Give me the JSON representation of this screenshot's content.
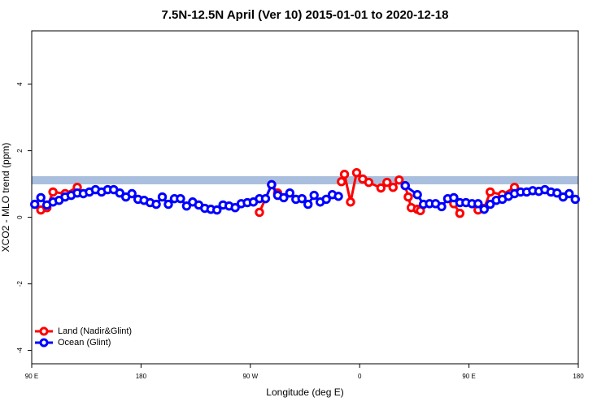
{
  "chart_data": {
    "type": "line",
    "title": "7.5N-12.5N April (Ver 10)   2015-01-01 to 2020-12-18",
    "x_label": "Longitude (deg E)",
    "y_label": "XCO2 - MLO trend (ppm)",
    "xlim": [
      90,
      540
    ],
    "ylim": [
      -4.4,
      5.6
    ],
    "xticks": [
      {
        "value": 90,
        "label": "90 E"
      },
      180,
      {
        "value": 270,
        "label": "90 W"
      },
      {
        "value": 360,
        "label": "0"
      },
      {
        "value": 450,
        "label": "90 E"
      },
      {
        "value": 540,
        "label": "180"
      }
    ],
    "yticks": [
      -4,
      -2,
      0,
      2,
      4
    ],
    "legend": "bottom-left",
    "series": [
      {
        "name": "Land (Nadir&Glint)",
        "color": "#ff0000",
        "x": [
          97.5,
          102.5,
          107.5,
          117.5,
          127.5,
          200,
          277.5,
          287.5,
          292.5,
          320,
          345,
          347.5,
          352.5,
          357.5,
          362.5,
          367.5,
          377.5,
          382.5,
          387.5,
          392.5,
          397.5,
          400,
          402.5,
          407.5,
          410,
          420,
          437.5,
          442.5,
          450,
          457.5,
          462.5,
          467.5,
          477.5,
          487.5
        ],
        "values": [
          0.22,
          0.29,
          0.76,
          0.71,
          0.9,
          null,
          0.15,
          0.98,
          0.73,
          null,
          1.07,
          1.29,
          0.46,
          1.34,
          1.15,
          1.05,
          0.88,
          1.05,
          0.9,
          1.12,
          0.95,
          0.61,
          0.29,
          0.24,
          0.2,
          null,
          0.41,
          0.12,
          null,
          0.22,
          0.27,
          0.76,
          0.68,
          0.9
        ]
      },
      {
        "name": "Ocean (Glint)",
        "color": "#0000ff",
        "x": [
          92.5,
          97.5,
          102.5,
          107.5,
          112.5,
          117.5,
          122.5,
          127.5,
          132.5,
          137.5,
          142.5,
          147.5,
          152.5,
          157.5,
          162.5,
          167.5,
          172.5,
          177.5,
          182.5,
          187.5,
          192.5,
          197.5,
          202.5,
          207.5,
          212.5,
          217.5,
          222.5,
          227.5,
          232.5,
          237.5,
          242.5,
          247.5,
          252.5,
          257.5,
          262.5,
          267.5,
          272.5,
          277.5,
          282.5,
          287.5,
          292.5,
          297.5,
          302.5,
          307.5,
          312.5,
          317.5,
          322.5,
          327.5,
          332.5,
          337.5,
          342.5,
          370,
          397.5,
          407.5,
          412.5,
          417.5,
          422.5,
          427.5,
          432.5,
          437.5,
          442.5,
          447.5,
          452.5,
          457.5,
          462.5,
          467.5,
          472.5,
          477.5,
          482.5,
          487.5,
          492.5,
          497.5,
          502.5,
          507.5,
          512.5,
          517.5,
          522.5,
          527.5,
          532.5,
          537.5
        ],
        "values": [
          0.39,
          0.59,
          0.37,
          0.46,
          0.51,
          0.61,
          0.66,
          0.73,
          0.71,
          0.76,
          0.83,
          0.76,
          0.83,
          0.83,
          0.73,
          0.61,
          0.71,
          0.54,
          0.51,
          0.44,
          0.39,
          0.61,
          0.39,
          0.56,
          0.56,
          0.34,
          0.46,
          0.37,
          0.27,
          0.24,
          0.22,
          0.37,
          0.34,
          0.29,
          0.41,
          0.44,
          0.46,
          0.56,
          0.56,
          0.98,
          0.66,
          0.59,
          0.73,
          0.54,
          0.56,
          0.39,
          0.66,
          0.46,
          0.54,
          0.68,
          0.63,
          null,
          0.95,
          0.68,
          0.39,
          0.41,
          0.41,
          0.32,
          0.56,
          0.59,
          0.44,
          0.44,
          0.41,
          0.41,
          0.24,
          0.39,
          0.51,
          0.54,
          0.63,
          0.71,
          0.76,
          0.76,
          0.8,
          0.78,
          0.83,
          0.76,
          0.73,
          0.61,
          0.71,
          0.54
        ]
      }
    ]
  }
}
